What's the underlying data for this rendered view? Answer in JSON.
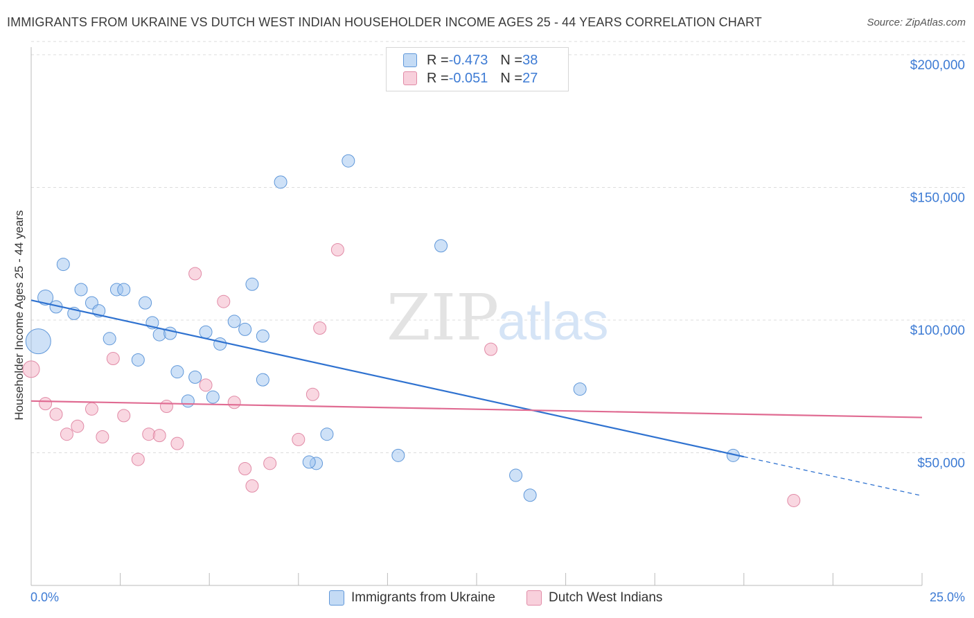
{
  "title": "IMMIGRANTS FROM UKRAINE VS DUTCH WEST INDIAN HOUSEHOLDER INCOME AGES 25 - 44 YEARS CORRELATION CHART",
  "source": "Source: ZipAtlas.com",
  "watermark": {
    "part1": "ZIP",
    "part2": "atlas"
  },
  "legend": {
    "rows": [
      {
        "r_label": "R = ",
        "r_value": "-0.473",
        "n_label": "N = ",
        "n_value": "38",
        "color": "#9dc3ef"
      },
      {
        "r_label": "R = ",
        "r_value": "-0.051",
        "n_label": "N = ",
        "n_value": "27",
        "color": "#f4b0c4"
      }
    ]
  },
  "bottom_legend": [
    "Immigrants from Ukraine",
    "Dutch West Indians"
  ],
  "x_tick_labels": {
    "min": "0.0%",
    "max": "25.0%"
  },
  "chart_data": {
    "type": "scatter",
    "title": "IMMIGRANTS FROM UKRAINE VS DUTCH WEST INDIAN HOUSEHOLDER INCOME AGES 25 - 44 YEARS CORRELATION CHART",
    "xlabel": "",
    "ylabel": "Householder Income Ages 25 - 44 years",
    "xlim": [
      0,
      25
    ],
    "ylim": [
      0,
      210000
    ],
    "y_ticks": [
      {
        "value": 50000,
        "label": "$50,000"
      },
      {
        "value": 100000,
        "label": "$100,000"
      },
      {
        "value": 150000,
        "label": "$150,000"
      },
      {
        "value": 200000,
        "label": "$200,000"
      }
    ],
    "grid": "horizontal dashed",
    "legend_placement": "bottom",
    "series": [
      {
        "name": "Immigrants from Ukraine",
        "color": "#9dc3ef",
        "stroke": "#5f97d9",
        "trend_color": "#2f72d0",
        "trend": {
          "x_start": 0,
          "y_start": 107500,
          "x_end": 20,
          "y_end": 48500,
          "dash_x_end": 25,
          "dash_y_end": 33800
        },
        "points": [
          [
            0.2,
            92000,
            18
          ],
          [
            0.4,
            108500,
            11
          ],
          [
            0.9,
            121000,
            9
          ],
          [
            0.7,
            105000,
            9
          ],
          [
            1.4,
            111500,
            9
          ],
          [
            1.7,
            106500,
            9
          ],
          [
            1.2,
            102500,
            9
          ],
          [
            1.9,
            103500,
            9
          ],
          [
            2.4,
            111500,
            9
          ],
          [
            2.6,
            111500,
            9
          ],
          [
            3.2,
            106500,
            9
          ],
          [
            2.2,
            93000,
            9
          ],
          [
            3.0,
            85000,
            9
          ],
          [
            3.4,
            99000,
            9
          ],
          [
            3.6,
            94500,
            9
          ],
          [
            3.9,
            95000,
            9
          ],
          [
            4.1,
            80500,
            9
          ],
          [
            4.4,
            69500,
            9
          ],
          [
            4.6,
            78500,
            9
          ],
          [
            4.9,
            95500,
            9
          ],
          [
            5.1,
            71000,
            9
          ],
          [
            5.3,
            91000,
            9
          ],
          [
            5.7,
            99500,
            9
          ],
          [
            6.0,
            96500,
            9
          ],
          [
            6.2,
            113500,
            9
          ],
          [
            6.5,
            94000,
            9
          ],
          [
            6.5,
            77500,
            9
          ],
          [
            7.0,
            152000,
            9
          ],
          [
            8.0,
            46000,
            9
          ],
          [
            7.8,
            46500,
            9
          ],
          [
            8.3,
            57000,
            9
          ],
          [
            8.9,
            160000,
            9
          ],
          [
            10.3,
            49000,
            9
          ],
          [
            11.5,
            128000,
            9
          ],
          [
            13.6,
            41500,
            9
          ],
          [
            14.0,
            34000,
            9
          ],
          [
            15.4,
            74000,
            9
          ],
          [
            19.7,
            49000,
            9
          ]
        ]
      },
      {
        "name": "Dutch West Indians",
        "color": "#f4b0c4",
        "stroke": "#e18aa6",
        "trend_color": "#e06b92",
        "trend": {
          "x_start": 0,
          "y_start": 69500,
          "x_end": 25,
          "y_end": 63300
        },
        "points": [
          [
            0.0,
            81500,
            12
          ],
          [
            0.4,
            68500,
            9
          ],
          [
            0.7,
            64500,
            9
          ],
          [
            1.0,
            57000,
            9
          ],
          [
            1.3,
            60000,
            9
          ],
          [
            1.7,
            66500,
            9
          ],
          [
            2.0,
            56000,
            9
          ],
          [
            2.3,
            85500,
            9
          ],
          [
            2.6,
            64000,
            9
          ],
          [
            3.0,
            47500,
            9
          ],
          [
            3.3,
            57000,
            9
          ],
          [
            3.6,
            56500,
            9
          ],
          [
            3.8,
            67500,
            9
          ],
          [
            4.1,
            53500,
            9
          ],
          [
            4.6,
            117500,
            9
          ],
          [
            4.9,
            75500,
            9
          ],
          [
            5.4,
            107000,
            9
          ],
          [
            5.7,
            69000,
            9
          ],
          [
            6.0,
            44000,
            9
          ],
          [
            6.2,
            37500,
            9
          ],
          [
            6.7,
            46000,
            9
          ],
          [
            7.5,
            55000,
            9
          ],
          [
            7.9,
            72000,
            9
          ],
          [
            8.1,
            97000,
            9
          ],
          [
            8.6,
            126500,
            9
          ],
          [
            12.9,
            89000,
            9
          ],
          [
            21.4,
            32000,
            9
          ]
        ]
      }
    ]
  }
}
